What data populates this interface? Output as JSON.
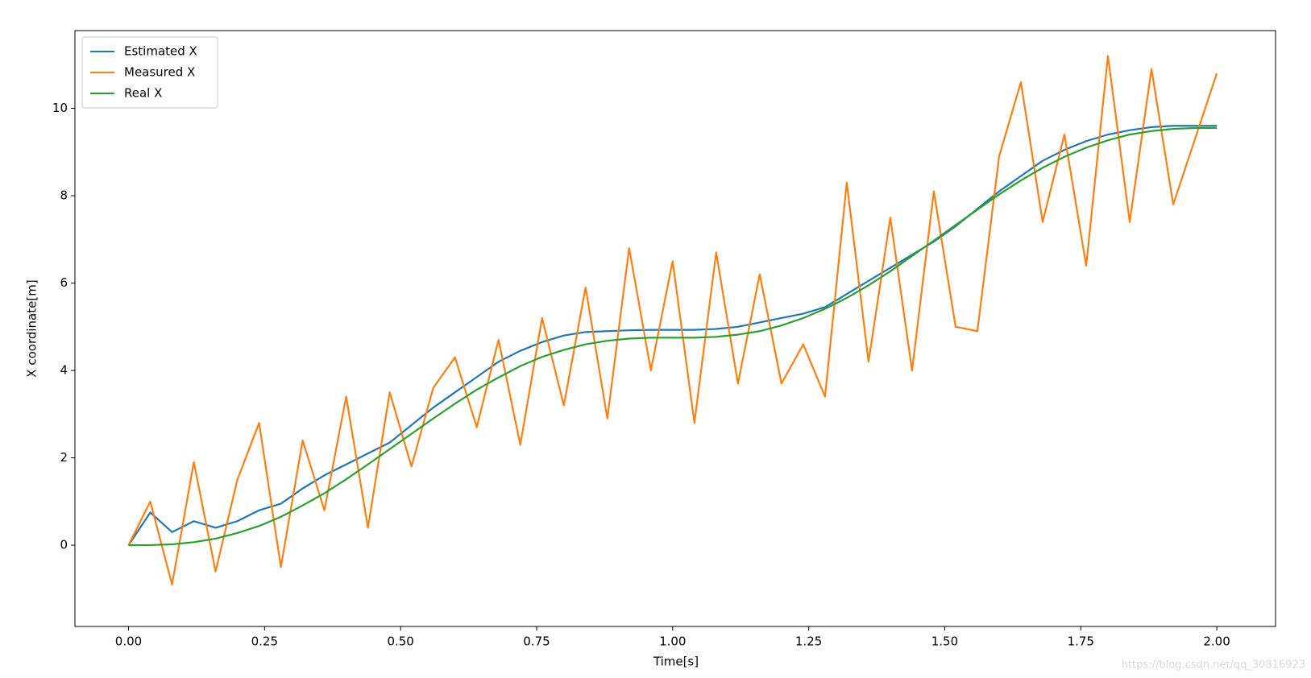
{
  "chart_data": {
    "type": "line",
    "xlabel": "Time[s]",
    "ylabel": "X coordinate[m]",
    "x": [
      0,
      0.04,
      0.08,
      0.12,
      0.16,
      0.2,
      0.24,
      0.28,
      0.32,
      0.36,
      0.4,
      0.44,
      0.48,
      0.52,
      0.56,
      0.6,
      0.64,
      0.68,
      0.72,
      0.76,
      0.8,
      0.84,
      0.88,
      0.92,
      0.96,
      1.0,
      1.04,
      1.08,
      1.12,
      1.16,
      1.2,
      1.24,
      1.28,
      1.32,
      1.36,
      1.4,
      1.44,
      1.48,
      1.52,
      1.56,
      1.6,
      1.64,
      1.68,
      1.72,
      1.76,
      1.8,
      1.84,
      1.88,
      1.92,
      1.96,
      2.0
    ],
    "series": [
      {
        "name": "Estimated X",
        "color": "#1f77b4",
        "values": [
          0,
          0.75,
          0.3,
          0.55,
          0.4,
          0.55,
          0.8,
          0.95,
          1.3,
          1.6,
          1.85,
          2.1,
          2.35,
          2.75,
          3.15,
          3.5,
          3.85,
          4.2,
          4.45,
          4.65,
          4.8,
          4.88,
          4.9,
          4.92,
          4.93,
          4.93,
          4.93,
          4.95,
          5.0,
          5.1,
          5.2,
          5.3,
          5.45,
          5.75,
          6.05,
          6.35,
          6.65,
          6.95,
          7.3,
          7.7,
          8.1,
          8.45,
          8.8,
          9.05,
          9.25,
          9.4,
          9.5,
          9.57,
          9.6,
          9.6,
          9.6
        ]
      },
      {
        "name": "Measured X",
        "color": "#ff7f0e",
        "values": [
          0,
          1.0,
          -0.9,
          1.9,
          -0.6,
          1.5,
          2.8,
          -0.5,
          2.4,
          0.8,
          3.4,
          0.4,
          3.5,
          1.8,
          3.6,
          4.3,
          2.7,
          4.7,
          2.3,
          5.2,
          3.2,
          5.9,
          2.9,
          6.8,
          4.0,
          6.5,
          2.8,
          6.7,
          3.7,
          6.2,
          3.7,
          4.6,
          3.4,
          8.3,
          4.2,
          7.5,
          4.0,
          8.1,
          5.0,
          4.9,
          8.9,
          10.6,
          7.4,
          9.4,
          6.4,
          11.2,
          7.4,
          10.9,
          7.8,
          9.3,
          10.8
        ]
      },
      {
        "name": "Real X",
        "color": "#2ca02c",
        "values": [
          0,
          0.003,
          0.02,
          0.07,
          0.15,
          0.28,
          0.44,
          0.65,
          0.91,
          1.19,
          1.51,
          1.85,
          2.2,
          2.55,
          2.9,
          3.24,
          3.56,
          3.84,
          4.1,
          4.31,
          4.47,
          4.6,
          4.68,
          4.73,
          4.75,
          4.75,
          4.75,
          4.77,
          4.82,
          4.9,
          5.03,
          5.2,
          5.41,
          5.66,
          5.95,
          6.27,
          6.62,
          6.97,
          7.33,
          7.68,
          8.03,
          8.35,
          8.64,
          8.89,
          9.1,
          9.27,
          9.4,
          9.48,
          9.53,
          9.55,
          9.55
        ]
      }
    ],
    "xlim": [
      -0.0985,
      2.108
    ],
    "ylim": [
      -1.86,
      11.78
    ],
    "xticks": [
      {
        "value": 0,
        "label": "0.00"
      },
      {
        "value": 0.25,
        "label": "0.25"
      },
      {
        "value": 0.5,
        "label": "0.50"
      },
      {
        "value": 0.75,
        "label": "0.75"
      },
      {
        "value": 1,
        "label": "1.00"
      },
      {
        "value": 1.25,
        "label": "1.25"
      },
      {
        "value": 1.5,
        "label": "1.50"
      },
      {
        "value": 1.75,
        "label": "1.75"
      },
      {
        "value": 2,
        "label": "2.00"
      }
    ],
    "yticks": [
      0,
      2,
      4,
      6,
      8,
      10
    ],
    "legend": "upper-left",
    "grid": false,
    "watermark": "https://blog.csdn.net/qq_30816923"
  }
}
